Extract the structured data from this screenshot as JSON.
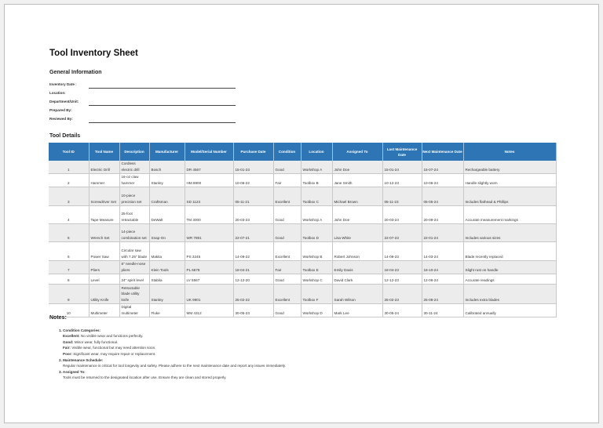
{
  "title": "Tool Inventory Sheet",
  "general": {
    "heading": "General Information",
    "fields": [
      "Inventory Date :",
      "Location:",
      "Department/Unit:",
      "Prepared By:",
      "Reviewed By:"
    ]
  },
  "details_heading": "Tool Details",
  "table": {
    "headers": [
      "Tool ID",
      "Tool Name",
      "Description",
      "Manufacturer",
      "Model/Serial Number",
      "Purchase Date",
      "Condition",
      "Location",
      "Assigned To",
      "Last Maintenance Date",
      "Next Maintenance Date",
      "Notes"
    ],
    "rows": [
      [
        "1",
        "Electric Drill",
        "Cordless electric drill",
        "Bosch",
        "DR 4567",
        "15-01-23",
        "Good",
        "Workshop A",
        "John Doe",
        "15-01-24",
        "15-07-24",
        "Rechargeable battery"
      ],
      [
        "2",
        "Hammer",
        "16-oz claw hammer",
        "Stanley",
        "HM 8900",
        "10-06-22",
        "Fair",
        "Toolbox B",
        "Jane Smith",
        "10-12-23",
        "10-06-24",
        "Handle slightly worn"
      ],
      [
        "3",
        "Screwdriver Set",
        "10-piece precision set",
        "Craftsman",
        "SD 1123",
        "05-11-21",
        "Excellent",
        "Toolbox C",
        "Michael Brown",
        "05-11-23",
        "05-05-24",
        "Includes flathead & Phillips"
      ],
      [
        "4",
        "Tape Measure",
        "25-foot retractable",
        "DeWalt",
        "TM 3000",
        "20-03-23",
        "Good",
        "Workshop A",
        "John Doe",
        "20-03-24",
        "20-09-24",
        "Accurate measurement markings"
      ],
      [
        "5",
        "Wrench Set",
        "14-piece combination set",
        "Snap-On",
        "WR 7891",
        "22-07-21",
        "Good",
        "Toolbox D",
        "Lisa White",
        "22-07-23",
        "22-01-24",
        "Includes various sizes"
      ],
      [
        "6",
        "Power Saw",
        "Circular saw with 7.25\" blade",
        "Makita",
        "PS 3245",
        "14-09-22",
        "Excellent",
        "Workshop B",
        "Robert Johnson",
        "14-09-23",
        "14-03-24",
        "Blade recently replaced"
      ],
      [
        "7",
        "Pliers",
        "8\" needle-nose pliers",
        "Klein Tools",
        "PL 6678",
        "18-04-21",
        "Fair",
        "Toolbox E",
        "Emily Davis",
        "18-04-23",
        "18-10-24",
        "Slight rust on handle"
      ],
      [
        "8",
        "Level",
        "24\" spirit level",
        "Stabila",
        "LV 5567",
        "12-12-20",
        "Good",
        "Workshop C",
        "David Clark",
        "12-12-23",
        "12-06-24",
        "Accurate readings"
      ],
      [
        "9",
        "Utility Knife",
        "Retractable blade utility knife",
        "Stanley",
        "UK 9901",
        "25-02-22",
        "Excellent",
        "Toolbox F",
        "Sarah Wilson",
        "25-02-23",
        "25-08-24",
        "Includes extra blades"
      ],
      [
        "10",
        "Multimeter",
        "Digital multimeter",
        "Fluke",
        "MM 4312",
        "30-05-23",
        "Good",
        "Workshop D",
        "Mark Lee",
        "30-05-24",
        "30-11-24",
        "Calibrated annually"
      ]
    ]
  },
  "notes": {
    "heading": "Notes:",
    "n1": "1. Condition Categories:",
    "cats": [
      [
        "Excellent:",
        "No visible wear and functions perfectly."
      ],
      [
        "Good:",
        "Minor wear, fully functional."
      ],
      [
        "Fair:",
        "Visible wear, functional but may need attention soon."
      ],
      [
        "Poor:",
        "Significant wear, may require repair or replacement."
      ]
    ],
    "n2": "2. Maintenance Schedule:",
    "n2t": "Regular maintenance is critical for tool longevity and safety. Please adhere to the next maintenance date and report any issues immediately.",
    "n3": "3. Assigned To:",
    "n3t": "Tools must be returned to the designated location after use. Ensure they are clean and stored properly."
  },
  "colors": {
    "header": "#2e75b6",
    "stripe": "#ececec"
  }
}
